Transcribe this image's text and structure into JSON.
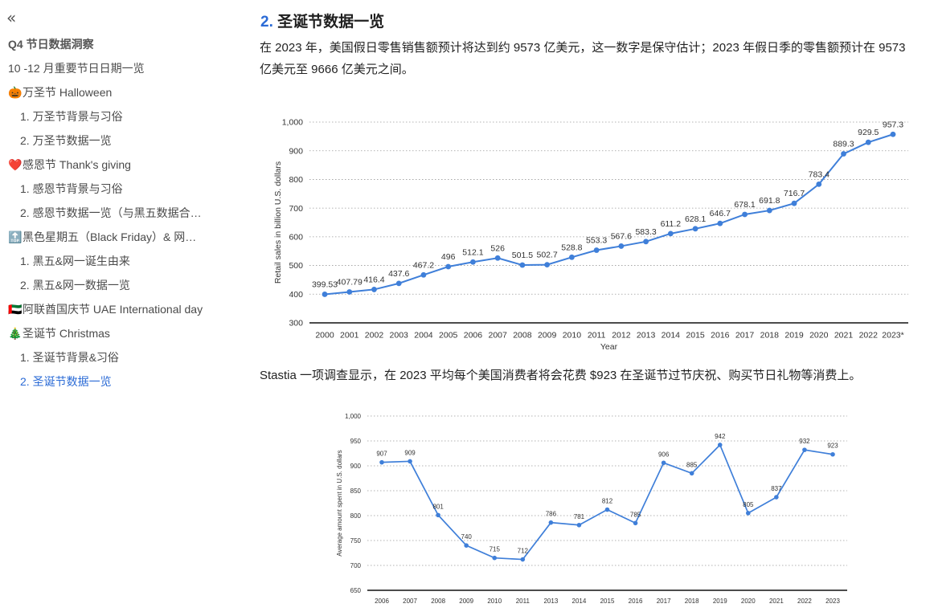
{
  "sidebar": {
    "collapse_icon": "double-chevron-left-icon",
    "items": [
      {
        "level": 1,
        "emoji": "",
        "label": "Q4 节日数据洞察",
        "bold": true
      },
      {
        "level": 1,
        "emoji": "",
        "label": "10 -12 月重要节日日期一览"
      },
      {
        "level": 1,
        "emoji": "🎃",
        "label": "万圣节 Halloween"
      },
      {
        "level": 2,
        "emoji": "",
        "label": "1. 万圣节背景与习俗"
      },
      {
        "level": 2,
        "emoji": "",
        "label": "2. 万圣节数据一览"
      },
      {
        "level": 1,
        "emoji": "❤️",
        "label": "感恩节 Thank's giving"
      },
      {
        "level": 2,
        "emoji": "",
        "label": "1. 感恩节背景与习俗"
      },
      {
        "level": 2,
        "emoji": "",
        "label": "2. 感恩节数据一览（与黑五数据合…"
      },
      {
        "level": 1,
        "emoji": "🔝",
        "label": "黑色星期五（Black Friday）& 网…"
      },
      {
        "level": 2,
        "emoji": "",
        "label": "1. 黑五&网一诞生由来"
      },
      {
        "level": 2,
        "emoji": "",
        "label": "2. 黑五&网一数据一览"
      },
      {
        "level": 1,
        "emoji": "🇦🇪",
        "label": "阿联酋国庆节 UAE International day"
      },
      {
        "level": 1,
        "emoji": "🎄",
        "label": "圣诞节 Christmas"
      },
      {
        "level": 2,
        "emoji": "",
        "label": "1. 圣诞节背景&习俗"
      },
      {
        "level": 2,
        "emoji": "",
        "label": "2. 圣诞节数据一览",
        "active": true
      }
    ]
  },
  "main": {
    "heading_num": "2.",
    "heading_text": "圣诞节数据一览",
    "para1": "在 2023 年，美国假日零售销售额预计将达到约 9573 亿美元，这一数字是保守估计；2023 年假日季的零售额预计在 9573 亿美元至 9666 亿美元之间。",
    "para2": "Stastia 一项调查显示，在 2023 平均每个美国消费者将会花费 $923 在圣诞节过节庆祝、购买节日礼物等消费上。"
  },
  "colors": {
    "accent": "#2b6bd6",
    "series": "#3f7fd9"
  },
  "chart_data": [
    {
      "type": "line",
      "title": "",
      "xlabel": "Year",
      "ylabel": "Retail sales in billion U.S. dollars",
      "ylim": [
        300,
        1000
      ],
      "yticks": [
        300,
        400,
        500,
        600,
        700,
        800,
        900,
        1000
      ],
      "ytick_labels": [
        "300",
        "400",
        "500",
        "600",
        "700",
        "800",
        "900",
        "1,000"
      ],
      "grid": true,
      "x": [
        "2000",
        "2001",
        "2002",
        "2003",
        "2004",
        "2005",
        "2006",
        "2007",
        "2008",
        "2009",
        "2010",
        "2011",
        "2012",
        "2013",
        "2014",
        "2015",
        "2016",
        "2017",
        "2018",
        "2019",
        "2020",
        "2021",
        "2022",
        "2023*"
      ],
      "values": [
        399.53,
        407.79,
        416.4,
        437.6,
        467.2,
        496,
        512.1,
        526,
        501.5,
        502.7,
        528.8,
        553.3,
        567.6,
        583.3,
        611.2,
        628.1,
        646.7,
        678.1,
        691.8,
        716.7,
        783.4,
        889.3,
        929.5,
        957.3
      ],
      "labels": [
        "399.53",
        "407.79",
        "416.4",
        "437.6",
        "467.2",
        "496",
        "512.1",
        "526",
        "501.5",
        "502.7",
        "528.8",
        "553.3",
        "567.6",
        "583.3",
        "611.2",
        "628.1",
        "646.7",
        "678.1",
        "691.8",
        "716.7",
        "783.4",
        "889.3",
        "929.5",
        "957.3"
      ]
    },
    {
      "type": "line",
      "title": "",
      "xlabel": "",
      "ylabel": "Average amount spent in U.S. dollars",
      "ylim": [
        650,
        1000
      ],
      "yticks": [
        650,
        700,
        750,
        800,
        850,
        900,
        950,
        1000
      ],
      "ytick_labels": [
        "650",
        "700",
        "750",
        "800",
        "850",
        "900",
        "950",
        "1,000"
      ],
      "grid": true,
      "x": [
        "2006",
        "2007",
        "2008",
        "2009",
        "2010",
        "2011",
        "2013",
        "2014",
        "2015",
        "2016",
        "2017",
        "2018",
        "2019",
        "2020",
        "2021",
        "2022",
        "2023"
      ],
      "values": [
        907,
        909,
        801,
        740,
        715,
        712,
        786,
        781,
        812,
        785,
        906,
        885,
        942,
        805,
        837,
        932,
        923
      ],
      "labels": [
        "907",
        "909",
        "801",
        "740",
        "715",
        "712",
        "786",
        "781",
        "812",
        "785",
        "906",
        "885",
        "942",
        "805",
        "837",
        "932",
        "923"
      ]
    }
  ]
}
